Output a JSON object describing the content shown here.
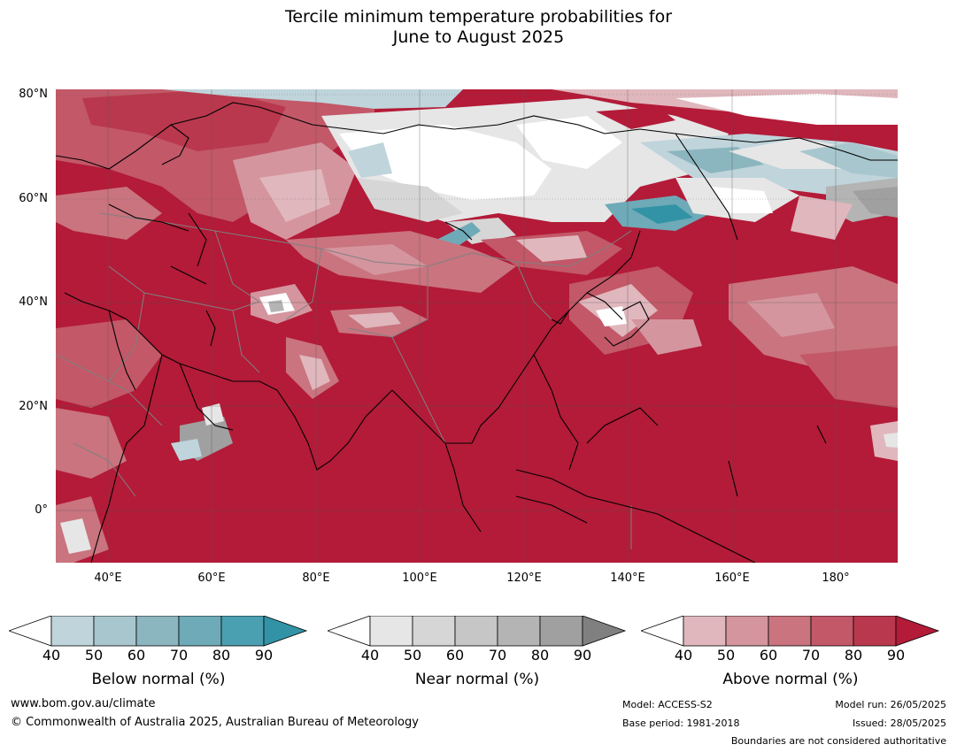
{
  "title": {
    "line1": "Tercile minimum temperature probabilities for",
    "line2": "June to August 2025"
  },
  "map": {
    "lat_labels": [
      "80°N",
      "60°N",
      "40°N",
      "20°N",
      "0°"
    ],
    "lon_labels": [
      "40°E",
      "60°E",
      "80°E",
      "100°E",
      "120°E",
      "140°E",
      "160°E",
      "180°"
    ],
    "colors": {
      "above": [
        "#e0b7bd",
        "#d4959e",
        "#c9747f",
        "#c25868",
        "#b9384d",
        "#b31b38"
      ],
      "near": [
        "#e6e6e6",
        "#d6d6d6",
        "#c6c6c6",
        "#b4b4b4",
        "#a0a0a0",
        "#808080"
      ],
      "below": [
        "#bfd4db",
        "#a8c6cd",
        "#8cb6bf",
        "#6eaab7",
        "#4a9fb0",
        "#3393a6"
      ],
      "coastline": "#000000",
      "border": "#808080"
    }
  },
  "legends": [
    {
      "caption": "Below normal (%)",
      "ticks": [
        "40",
        "50",
        "60",
        "70",
        "80",
        "90"
      ],
      "colors": [
        "#ffffff",
        "#bfd4db",
        "#a8c6cd",
        "#8cb6bf",
        "#6eaab7",
        "#4a9fb0",
        "#3393a6"
      ]
    },
    {
      "caption": "Near normal (%)",
      "ticks": [
        "40",
        "50",
        "60",
        "70",
        "80",
        "90"
      ],
      "colors": [
        "#ffffff",
        "#e6e6e6",
        "#d6d6d6",
        "#c6c6c6",
        "#b4b4b4",
        "#a0a0a0",
        "#808080"
      ]
    },
    {
      "caption": "Above normal (%)",
      "ticks": [
        "40",
        "50",
        "60",
        "70",
        "80",
        "90"
      ],
      "colors": [
        "#ffffff",
        "#e0b7bd",
        "#d4959e",
        "#c9747f",
        "#c25868",
        "#b9384d",
        "#b31b38"
      ]
    }
  ],
  "footer": {
    "url": "www.bom.gov.au/climate",
    "copyright": "© Commonwealth of Australia 2025, Australian Bureau of Meteorology",
    "model": "Model: ACCESS-S2",
    "base_period": "Base period: 1981-2018",
    "model_run": "Model run: 26/05/2025",
    "issued": "Issued: 28/05/2025",
    "disclaimer": "Boundaries are not considered authoritative"
  }
}
